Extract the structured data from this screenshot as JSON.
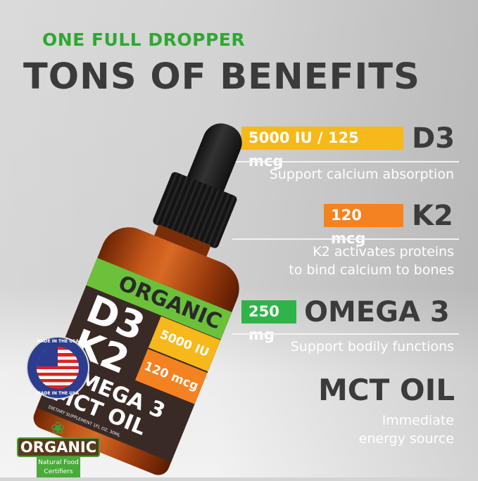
{
  "header": {
    "subtitle": "ONE FULL DROPPER",
    "title": "TONS OF BENEFITS"
  },
  "benefits": [
    {
      "dose": "5000 IU / 125 mcg",
      "name": "D3",
      "desc": [
        "Support calcium absorption"
      ],
      "color": "#f6b81a"
    },
    {
      "dose": "120 mcg",
      "name": "K2",
      "desc": [
        "K2 activates proteins",
        "to bind calcium to bones"
      ],
      "color": "#f58220"
    },
    {
      "dose": "250 mg",
      "name": "OMEGA 3",
      "desc": [
        "Support bodily functions"
      ],
      "color": "#2fb44a"
    },
    {
      "name": "MCT OIL",
      "desc": [
        "Immediate",
        "energy source"
      ]
    }
  ],
  "bottle": {
    "brand": "ORGANIC",
    "line1": "D3",
    "line2": "K2",
    "line3": "OMEGA 3",
    "line4": "MCT OIL",
    "dose1": "5000 IU",
    "dose2": "120 mcg",
    "fine": "DIETARY SUPPLEMENT 1FL OZ. 30ML"
  },
  "badges": {
    "usa_top": "MADE IN THE USA",
    "usa_bottom": "MADE IN THE USA",
    "organic": "ORGANIC",
    "organic_sub1": "Natural Food",
    "organic_sub2": "Certifiers"
  }
}
